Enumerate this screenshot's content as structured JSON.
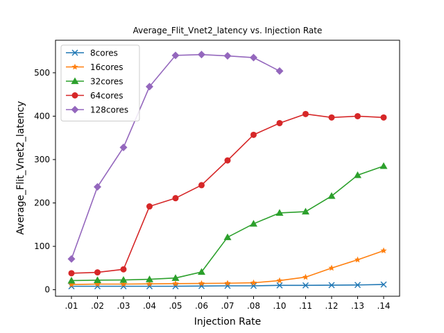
{
  "chart_data": {
    "type": "line",
    "title": "Average_Flit_Vnet2_latency vs. Injection Rate",
    "xlabel": "Injection Rate",
    "ylabel": "Average_Flit_Vnet2_latency",
    "categories": [
      ".01",
      ".02",
      ".03",
      ".04",
      ".05",
      ".06",
      ".07",
      ".08",
      ".10",
      ".11",
      ".12",
      ".13",
      ".14"
    ],
    "ylim": [
      -15,
      575
    ],
    "yticks": [
      0,
      100,
      200,
      300,
      400,
      500
    ],
    "grid": false,
    "legend_position": "upper-left",
    "series": [
      {
        "name": "8cores",
        "color": "#1f77b4",
        "marker": "x",
        "values": [
          8,
          8,
          8,
          8,
          8,
          8.5,
          9,
          9,
          10,
          10,
          10.5,
          11,
          12
        ]
      },
      {
        "name": "16cores",
        "color": "#ff7f0e",
        "marker": "star",
        "values": [
          12,
          13,
          13,
          13.5,
          14,
          14.5,
          15,
          16,
          21,
          29,
          50,
          69,
          90
        ]
      },
      {
        "name": "32cores",
        "color": "#2ca02c",
        "marker": "triangle",
        "values": [
          21,
          22,
          22.5,
          24,
          27,
          41,
          121,
          152,
          177,
          180,
          216,
          264,
          285
        ]
      },
      {
        "name": "64cores",
        "color": "#d62728",
        "marker": "circle",
        "values": [
          38,
          40,
          47,
          192,
          211,
          241,
          298,
          357,
          384,
          405,
          397,
          400,
          397
        ]
      },
      {
        "name": "128cores",
        "color": "#9467bd",
        "marker": "diamond",
        "values": [
          71,
          237,
          328,
          468,
          540,
          542,
          539,
          535,
          504,
          null,
          null,
          null,
          null
        ]
      }
    ]
  }
}
